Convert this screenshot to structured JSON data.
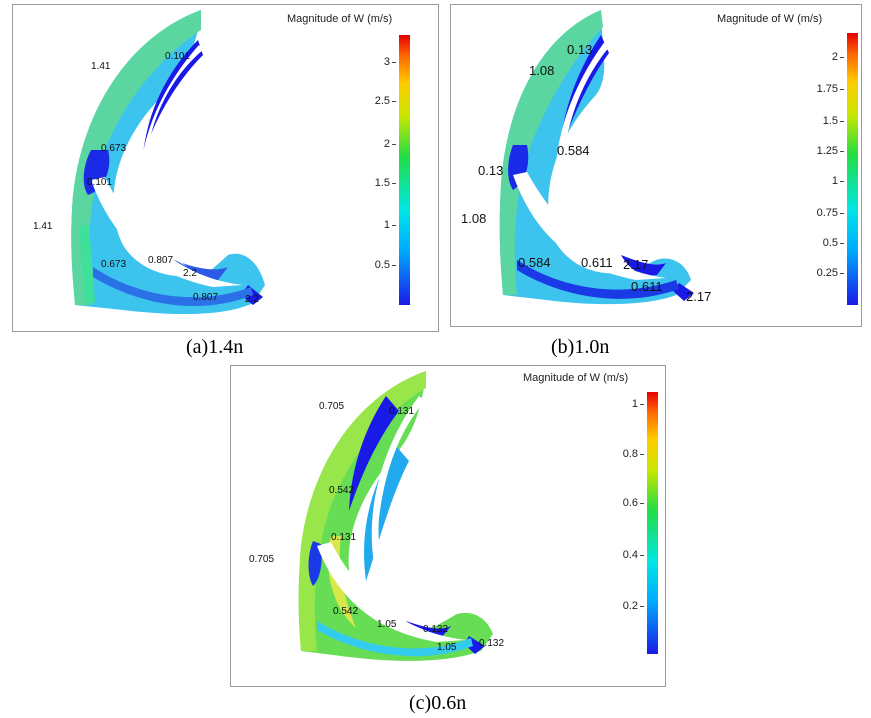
{
  "colors": {
    "low": "#1a1ae6",
    "mid": "#22dd44",
    "high": "#e60000",
    "blade": "#ffffff"
  },
  "panels": [
    {
      "id": "a",
      "caption": "(a)1.4n",
      "legend_title": "Magnitude of W (m/s)",
      "ticks": [
        "3",
        "2.5",
        "2",
        "1.5",
        "1",
        "0.5"
      ],
      "labels": [
        "1.41",
        "0.101",
        "0.673",
        "0.101",
        "1.41",
        "0.807",
        "0.673",
        "2.2",
        "0.807",
        "2.2"
      ]
    },
    {
      "id": "b",
      "caption": "(b)1.0n",
      "legend_title": "Magnitude of W (m/s)",
      "ticks": [
        "2",
        "1.75",
        "1.5",
        "1.25",
        "1",
        "0.75",
        "0.5",
        "0.25"
      ],
      "labels": [
        "0.13",
        "1.08",
        "0.584",
        "0.13",
        "1.08",
        "0.611",
        "2.17",
        "0.584",
        "0.611",
        "2.17"
      ]
    },
    {
      "id": "c",
      "caption": "(c)0.6n",
      "legend_title": "Magnitude of W (m/s)",
      "ticks": [
        "1",
        "0.8",
        "0.6",
        "0.4",
        "0.2"
      ],
      "labels": [
        "0.705",
        "0.131",
        "0.542",
        "0.131",
        "0.705",
        "0.542",
        "1.05",
        "0.132",
        "1.05",
        "0.132"
      ]
    }
  ]
}
